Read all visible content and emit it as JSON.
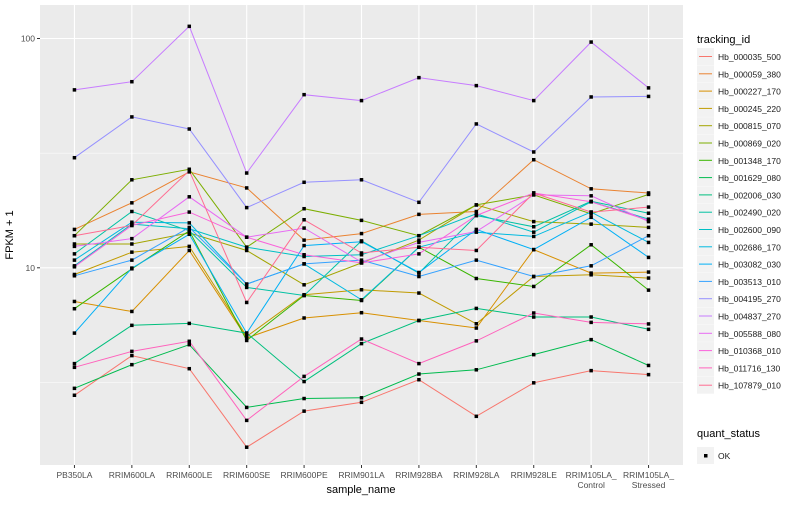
{
  "chart_data": {
    "type": "line",
    "title": "",
    "xlabel": "sample_name",
    "ylabel": "FPKM + 1",
    "y_scale": "log10",
    "ylim": [
      1.38,
      140
    ],
    "y_ticks": [
      10,
      100
    ],
    "y_tick_labels": [
      "10",
      "100"
    ],
    "grid": true,
    "legend_position": "right",
    "categories": [
      "PB350LA",
      "RRIM600LA",
      "RRIM600LE",
      "RRIM600SE",
      "RRIM600PE",
      "RRIM901LA",
      "RRIM928BA",
      "RRIM928LA",
      "RRIM928LE",
      "RRIM105LA_Control",
      "RRIM105LA_Stressed"
    ],
    "color_legend_title": "tracking_id",
    "shape_legend_title": "quant_status",
    "shape_legend_items": [
      {
        "label": "OK",
        "shape": "square",
        "color": "#000000"
      }
    ],
    "series": [
      {
        "name": "Hb_000035_500",
        "color": "#F8766D",
        "values": [
          2.78,
          4.14,
          3.63,
          1.65,
          2.37,
          2.59,
          3.25,
          2.25,
          3.15,
          3.56,
          3.42
        ]
      },
      {
        "name": "Hb_000059_380",
        "color": "#EA8331",
        "values": [
          14.7,
          19.2,
          26.2,
          22.3,
          13.2,
          14.1,
          17.1,
          17.6,
          29.6,
          22.1,
          21.2
        ]
      },
      {
        "name": "Hb_000227_170",
        "color": "#D89000",
        "values": [
          7.13,
          6.45,
          11.9,
          4.94,
          6.04,
          6.37,
          5.89,
          5.46,
          12.0,
          9.48,
          9.58
        ]
      },
      {
        "name": "Hb_000245_220",
        "color": "#C09B00",
        "values": [
          9.35,
          11.7,
          12.4,
          5.02,
          7.63,
          8.02,
          7.76,
          5.7,
          9.16,
          9.32,
          9.02
        ]
      },
      {
        "name": "Hb_000815_070",
        "color": "#A3A500",
        "values": [
          12.7,
          12.7,
          14.2,
          11.9,
          8.43,
          10.5,
          13.2,
          18.8,
          15.9,
          15.5,
          15.0
        ]
      },
      {
        "name": "Hb_000869_020",
        "color": "#7CAE00",
        "values": [
          13.8,
          24.2,
          26.9,
          12.3,
          18.1,
          16.1,
          13.8,
          18.8,
          20.8,
          17.2,
          20.9
        ]
      },
      {
        "name": "Hb_001348_170",
        "color": "#39B600",
        "values": [
          6.63,
          9.9,
          14.5,
          4.82,
          7.57,
          7.2,
          12.3,
          8.98,
          8.29,
          12.6,
          7.99
        ]
      },
      {
        "name": "Hb_001629_080",
        "color": "#00BB4E",
        "values": [
          2.98,
          3.78,
          4.62,
          2.46,
          2.69,
          2.71,
          3.44,
          3.59,
          4.18,
          4.86,
          3.75
        ]
      },
      {
        "name": "Hb_002006_030",
        "color": "#00BF7D",
        "values": [
          3.82,
          5.61,
          5.72,
          5.19,
          3.19,
          4.67,
          5.89,
          6.65,
          6.1,
          6.1,
          5.39
        ]
      },
      {
        "name": "Hb_002490_020",
        "color": "#00C1A3",
        "values": [
          11.5,
          17.6,
          14.5,
          8.21,
          7.57,
          13.1,
          9.48,
          16.9,
          15.1,
          19.5,
          17.3
        ]
      },
      {
        "name": "Hb_002600_090",
        "color": "#00BFC4",
        "values": [
          10.2,
          15.5,
          14.8,
          12.3,
          11.2,
          11.4,
          13.8,
          17.2,
          14.3,
          19.4,
          16.3
        ]
      },
      {
        "name": "Hb_002686_170",
        "color": "#00BAE0",
        "values": [
          10.8,
          15.8,
          15.7,
          8.49,
          10.4,
          7.25,
          12.3,
          14.3,
          13.7,
          17.5,
          12.9
        ]
      },
      {
        "name": "Hb_003082_030",
        "color": "#00B0F6",
        "values": [
          5.19,
          9.97,
          14.0,
          5.19,
          12.5,
          13.0,
          9.54,
          14.7,
          12.0,
          16.6,
          11.1
        ]
      },
      {
        "name": "Hb_003513_010",
        "color": "#35A2FF",
        "values": [
          9.23,
          10.8,
          15.0,
          8.49,
          10.4,
          10.8,
          9.16,
          10.8,
          9.16,
          10.2,
          13.8
        ]
      },
      {
        "name": "Hb_004195_270",
        "color": "#9590FF",
        "values": [
          30.2,
          45.5,
          40.3,
          18.3,
          23.6,
          24.2,
          19.3,
          42.4,
          32.0,
          55.6,
          55.9
        ]
      },
      {
        "name": "Hb_004837_270",
        "color": "#C77CFF",
        "values": [
          59.7,
          64.8,
          113,
          25.9,
          56.9,
          53.6,
          67.5,
          62.3,
          53.6,
          96.5,
          60.9
        ]
      },
      {
        "name": "Hb_005588_080",
        "color": "#E76BF3",
        "values": [
          12.4,
          13.4,
          20.4,
          13.6,
          14.9,
          10.6,
          12.9,
          14.4,
          20.8,
          20.6,
          15.9
        ]
      },
      {
        "name": "Hb_010368_010",
        "color": "#FA62DB",
        "values": [
          10.1,
          15.3,
          17.5,
          13.6,
          11.4,
          10.5,
          11.5,
          16.9,
          21.2,
          19.4,
          16.1
        ]
      },
      {
        "name": "Hb_011716_130",
        "color": "#FF62BC",
        "values": [
          3.68,
          4.32,
          4.78,
          2.16,
          3.36,
          4.89,
          3.82,
          4.8,
          6.35,
          5.78,
          5.69
        ]
      },
      {
        "name": "Hb_107879_010",
        "color": "#FF6C91",
        "values": [
          13.8,
          15.3,
          26.5,
          7.06,
          16.2,
          11.6,
          12.3,
          11.9,
          21.2,
          17.5,
          18.4
        ]
      }
    ]
  }
}
